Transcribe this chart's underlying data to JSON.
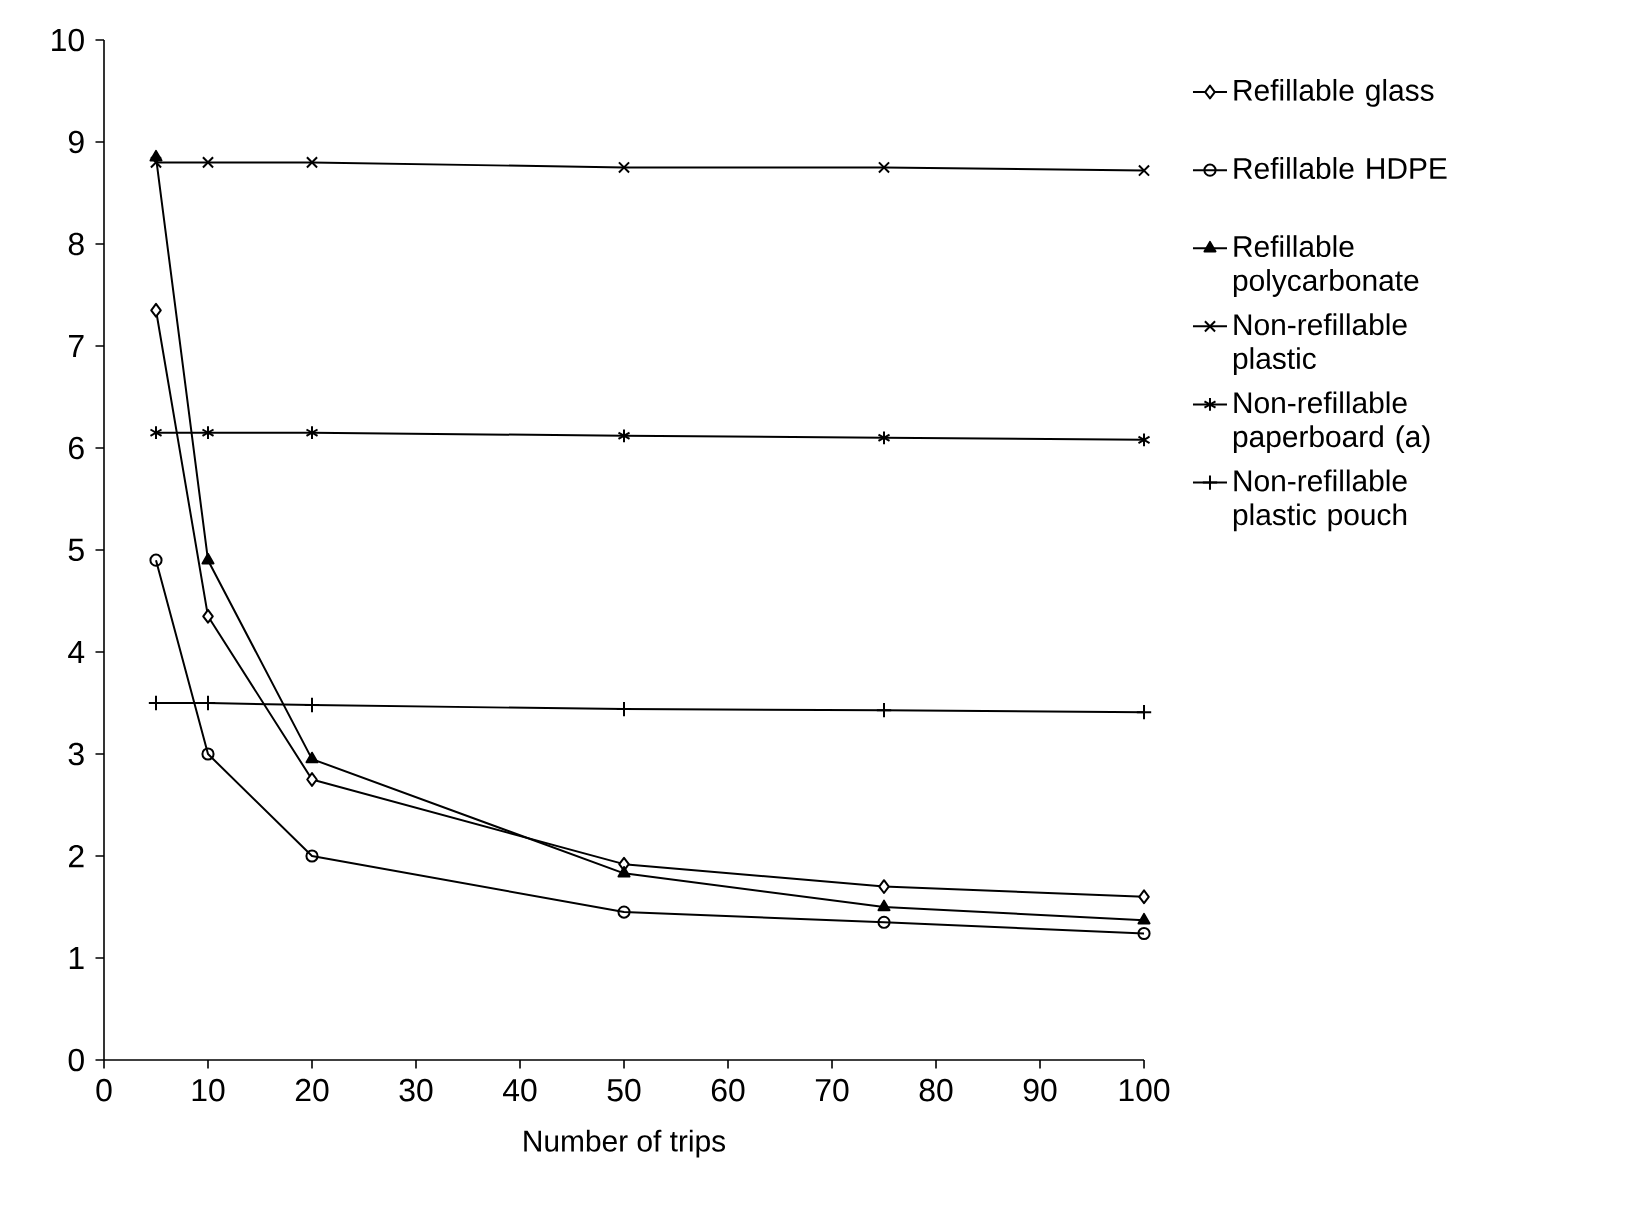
{
  "chart_data": {
    "type": "line",
    "xlabel": "Number of trips",
    "x": [
      5,
      10,
      20,
      50,
      75,
      100
    ],
    "series": [
      {
        "name": "Refillable glass",
        "color": "#000000",
        "marker": "diamond",
        "values": [
          7.35,
          4.35,
          2.75,
          1.92,
          1.7,
          1.6
        ]
      },
      {
        "name": "Refillable HDPE",
        "color": "#000000",
        "marker": "circle",
        "values": [
          4.9,
          3.0,
          2.0,
          1.45,
          1.35,
          1.24
        ]
      },
      {
        "name": "Refillable polycarbonate",
        "color": "#000000",
        "marker": "triangle",
        "values": [
          8.85,
          4.9,
          2.95,
          1.83,
          1.5,
          1.37
        ]
      },
      {
        "name": "Non-refillable plastic",
        "color": "#000000",
        "marker": "cross",
        "values": [
          8.8,
          8.8,
          8.8,
          8.75,
          8.75,
          8.72
        ]
      },
      {
        "name": "Non-refillable paperboard (a)",
        "color": "#000000",
        "marker": "cross",
        "values": [
          6.15,
          6.15,
          6.15,
          6.12,
          6.1,
          6.08
        ]
      },
      {
        "name": "Non-refillable plastic pouch",
        "color": "#000000",
        "marker": "cross",
        "values": [
          3.5,
          3.5,
          3.48,
          3.44,
          3.43,
          3.41
        ]
      }
    ],
    "xlim": [
      0,
      100
    ],
    "xticks": [
      0,
      10,
      20,
      30,
      40,
      50,
      60,
      70,
      80,
      90,
      100
    ],
    "ylim": [
      0,
      10
    ],
    "yticks": [
      0,
      1,
      2,
      3,
      4,
      5,
      6,
      7,
      8,
      9,
      10
    ],
    "grid": false,
    "legend": "right",
    "line_style": "solid"
  }
}
